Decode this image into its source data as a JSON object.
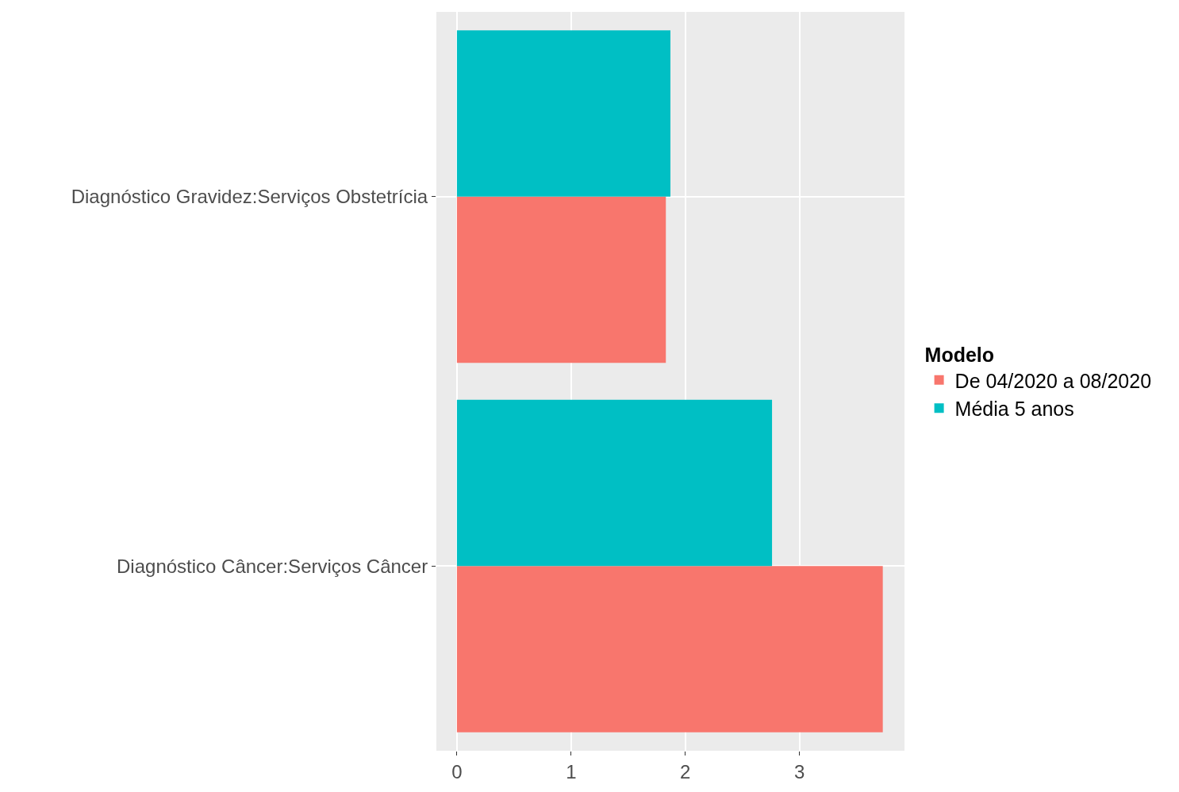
{
  "chart_data": {
    "type": "bar",
    "orientation": "horizontal",
    "categories": [
      "Diagnóstico Gravidez:Serviços Obstetrícia",
      "Diagnóstico Câncer:Serviços Câncer"
    ],
    "series": [
      {
        "name": "De 04/2020 a 08/2020",
        "color": "#f8766d",
        "values": [
          1.83,
          3.73
        ]
      },
      {
        "name": "Média 5 anos",
        "color": "#00bfc4",
        "values": [
          1.87,
          2.76
        ]
      }
    ],
    "legend_title": "Modelo",
    "legend": "right",
    "xlim": [
      -0.18,
      3.92
    ],
    "xticks": [
      0,
      1,
      2,
      3
    ],
    "grid": true
  }
}
